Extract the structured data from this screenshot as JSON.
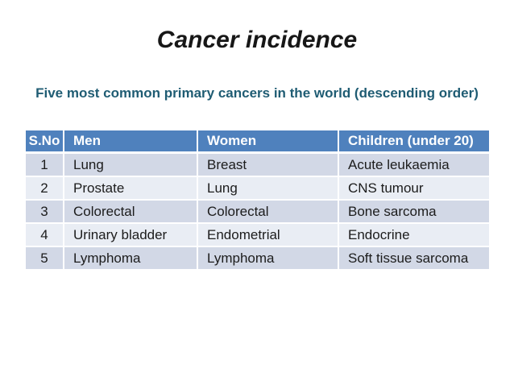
{
  "slide": {
    "title": "Cancer incidence",
    "subtitle": "Five most common primary cancers in the world (descending order)"
  },
  "colors": {
    "header_bg": "#4F81BD",
    "header_text": "#FFFFFF",
    "band_odd": "#D2D8E6",
    "band_even": "#E9EDF4",
    "subtitle_text": "#1F5C73"
  },
  "table": {
    "columns": [
      "S.No",
      "Men",
      "Women",
      "Children (under 20)"
    ],
    "rows": [
      {
        "cells": [
          "1",
          "Lung",
          "Breast",
          "Acute leukaemia"
        ]
      },
      {
        "cells": [
          "2",
          "Prostate",
          "Lung",
          "CNS tumour"
        ]
      },
      {
        "cells": [
          "3",
          "Colorectal",
          "Colorectal",
          "Bone sarcoma"
        ]
      },
      {
        "cells": [
          "4",
          "Urinary bladder",
          "Endometrial",
          "Endocrine"
        ]
      },
      {
        "cells": [
          "5",
          "Lymphoma",
          "Lymphoma",
          "Soft tissue sarcoma"
        ]
      }
    ]
  }
}
